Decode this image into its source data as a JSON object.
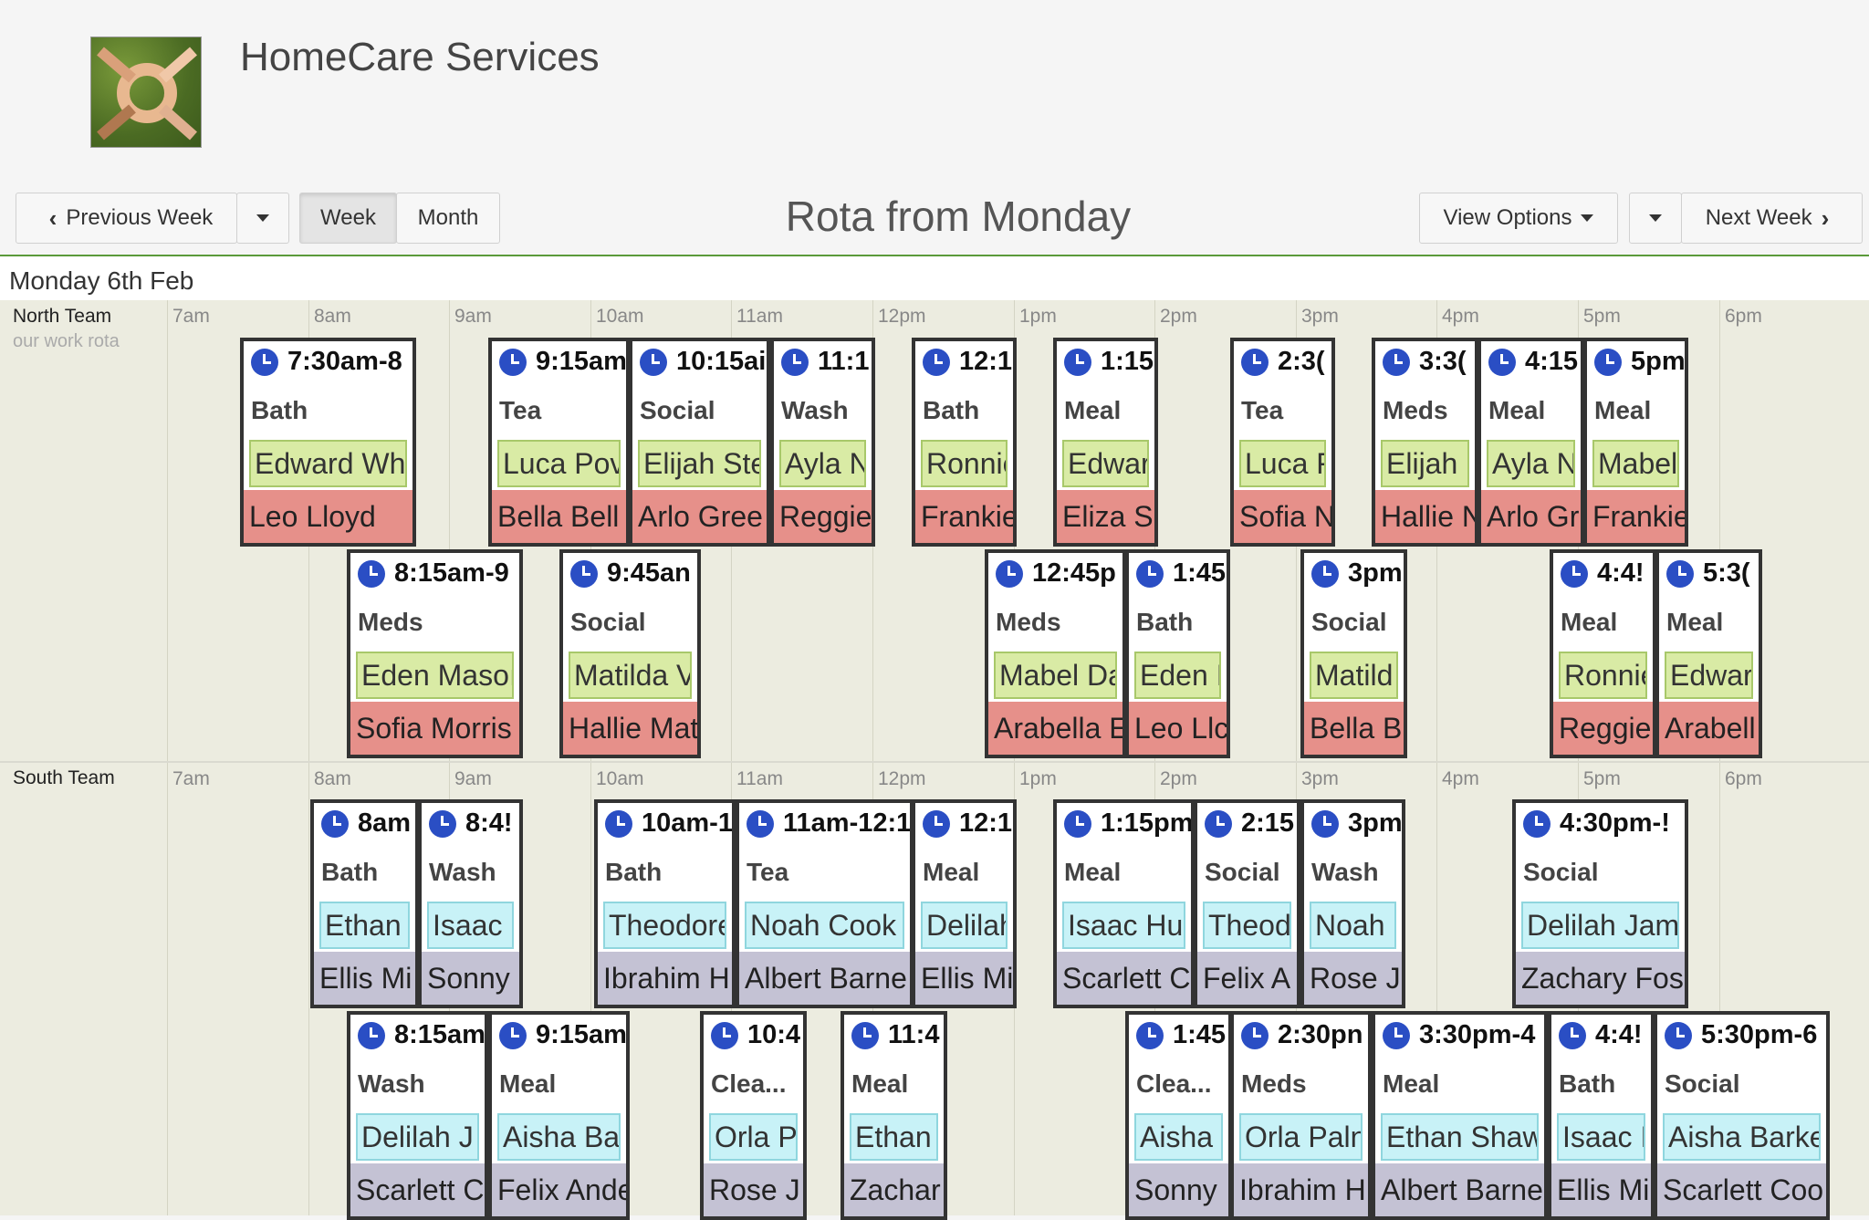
{
  "app": {
    "title": "HomeCare Services"
  },
  "toolbar": {
    "prev_label": "Previous Week",
    "week_label": "Week",
    "month_label": "Month",
    "title": "Rota from Monday",
    "view_options_label": "View Options",
    "next_label": "Next Week"
  },
  "day_label": "Monday 6th Feb",
  "hours": [
    "7am",
    "8am",
    "9am",
    "10am",
    "11am",
    "12pm",
    "1pm",
    "2pm",
    "3pm",
    "4pm",
    "5pm",
    "6pm"
  ],
  "teams": [
    {
      "name": "North Team",
      "subtitle": "our work rota",
      "rows": [
        [
          {
            "time": "7:30am-8",
            "type": "Bath",
            "client": "Edward Wh",
            "carer": "Leo Lloyd"
          },
          {
            "time": "9:15am",
            "type": "Tea",
            "client": "Luca Pov",
            "carer": "Bella Bell"
          },
          {
            "time": "10:15ai",
            "type": "Social",
            "client": "Elijah Ste",
            "carer": "Arlo Gree"
          },
          {
            "time": "11:1!",
            "type": "Wash",
            "client": "Ayla N",
            "carer": "Reggie"
          },
          {
            "time": "12:1",
            "type": "Bath",
            "client": "Ronnie",
            "carer": "Frankie"
          },
          {
            "time": "1:15",
            "type": "Meal",
            "client": "Edwar",
            "carer": "Eliza Si"
          },
          {
            "time": "2:3(",
            "type": "Tea",
            "client": "Luca F",
            "carer": "Sofia N"
          },
          {
            "time": "3:3(",
            "type": "Meds",
            "client": "Elijah !",
            "carer": "Hallie N"
          },
          {
            "time": "4:15",
            "type": "Meal",
            "client": "Ayla N",
            "carer": "Arlo Gr"
          },
          {
            "time": "5pm",
            "type": "Meal",
            "client": "Mabel",
            "carer": "Frankie"
          }
        ],
        [
          {
            "time": "8:15am-9",
            "type": "Meds",
            "client": "Eden Masoı",
            "carer": "Sofia Morris"
          },
          {
            "time": "9:45an",
            "type": "Social",
            "client": "Matilda V",
            "carer": "Hallie Mat"
          },
          {
            "time": "12:45p",
            "type": "Meds",
            "client": "Mabel Da",
            "carer": "Arabella E"
          },
          {
            "time": "1:45",
            "type": "Bath",
            "client": "Eden I",
            "carer": "Leo Llc"
          },
          {
            "time": "3pm",
            "type": "Social",
            "client": "Matild",
            "carer": "Bella B"
          },
          {
            "time": "4:4!",
            "type": "Meal",
            "client": "Ronnie",
            "carer": "Reggie"
          },
          {
            "time": "5:3(",
            "type": "Meal",
            "client": "Edwar",
            "carer": "Arabell"
          }
        ]
      ]
    },
    {
      "name": "South Team",
      "subtitle": "",
      "rows": [
        [
          {
            "time": "8am",
            "type": "Bath",
            "client": "Ethan",
            "carer": "Ellis Mi"
          },
          {
            "time": "8:4!",
            "type": "Wash",
            "client": "Isaac I",
            "carer": "Sonny"
          },
          {
            "time": "10am-1",
            "type": "Bath",
            "client": "Theodore",
            "carer": "Ibrahim H"
          },
          {
            "time": "11am-12:1",
            "type": "Tea",
            "client": "Noah Cook",
            "carer": "Albert Barne"
          },
          {
            "time": "12:1",
            "type": "Meal",
            "client": "Delilah",
            "carer": "Ellis Mi"
          },
          {
            "time": "1:15pm",
            "type": "Meal",
            "client": "Isaac Hu",
            "carer": "Scarlett C"
          },
          {
            "time": "2:15",
            "type": "Social",
            "client": "Theod",
            "carer": "Felix A"
          },
          {
            "time": "3pm",
            "type": "Wash",
            "client": "Noah (",
            "carer": "Rose J"
          },
          {
            "time": "4:30pm-!",
            "type": "Social",
            "client": "Delilah Jam",
            "carer": "Zachary Fos"
          }
        ],
        [
          {
            "time": "8:15am",
            "type": "Wash",
            "client": "Delilah J",
            "carer": "Scarlett C"
          },
          {
            "time": "9:15am",
            "type": "Meal",
            "client": "Aisha Ba",
            "carer": "Felix Ande"
          },
          {
            "time": "10:4",
            "type": "Clea...",
            "client": "Orla P",
            "carer": "Rose J"
          },
          {
            "time": "11:4",
            "type": "Meal",
            "client": "Ethan",
            "carer": "Zachar"
          },
          {
            "time": "1:45",
            "type": "Clea...",
            "client": "Aisha",
            "carer": "Sonny"
          },
          {
            "time": "2:30pn",
            "type": "Meds",
            "client": "Orla Paln",
            "carer": "Ibrahim H"
          },
          {
            "time": "3:30pm-4",
            "type": "Meal",
            "client": "Ethan Shaw",
            "carer": "Albert Barne"
          },
          {
            "time": "4:4!",
            "type": "Bath",
            "client": "Isaac I",
            "carer": "Ellis Mi"
          },
          {
            "time": "5:30pm-6",
            "type": "Social",
            "client": "Aisha Barke",
            "carer": "Scarlett Coo"
          }
        ]
      ]
    }
  ]
}
